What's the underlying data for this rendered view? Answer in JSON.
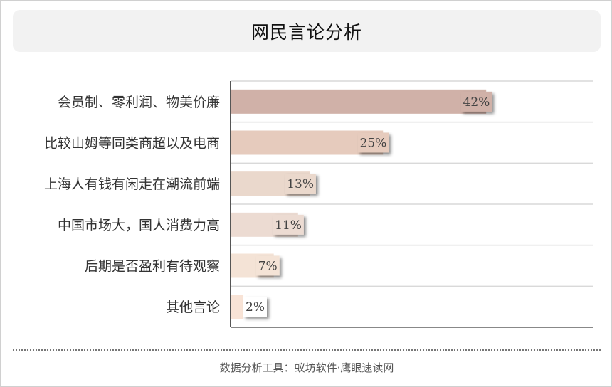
{
  "chart_data": {
    "type": "bar",
    "orientation": "horizontal",
    "title": "网民言论分析",
    "categories": [
      "会员制、零利润、物美价廉",
      "比较山姆等同类商超以及电商",
      "上海人有钱有闲走在潮流前端",
      "中国市场大，国人消费力高",
      "后期是否盈利有待观察",
      "其他言论"
    ],
    "values": [
      42,
      25,
      13,
      11,
      7,
      2
    ],
    "value_labels": [
      "42%",
      "25%",
      "13%",
      "11%",
      "7%",
      "2%"
    ],
    "colors": [
      "#d0b1a8",
      "#e6cbbd",
      "#ead8cc",
      "#ecdbd2",
      "#f4e3d6",
      "#f8e3d6"
    ],
    "xlim": [
      0,
      59.8
    ],
    "grid": true
  },
  "footer": {
    "text": "数据分析工具：蚁坊软件·鹰眼速读网"
  }
}
